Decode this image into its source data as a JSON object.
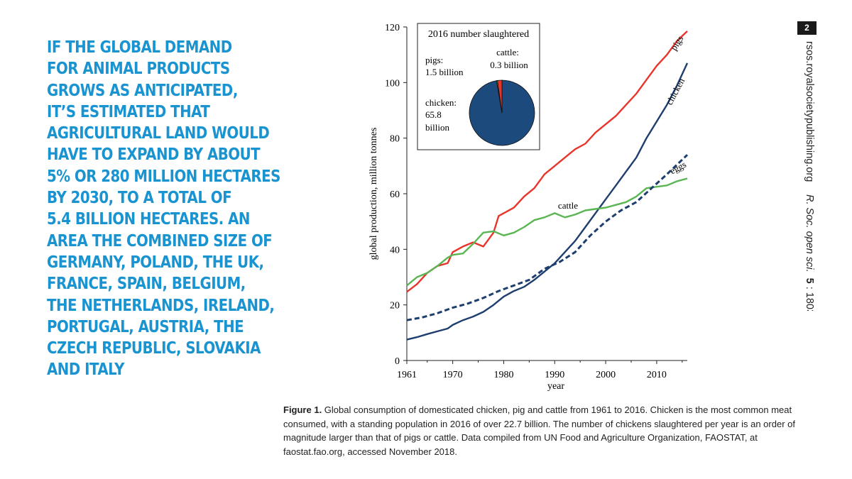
{
  "headline": {
    "lines": [
      "IF THE GLOBAL DEMAND",
      "FOR ANIMAL PRODUCTS",
      "GROWS AS ANTICIPATED,",
      "IT’S ESTIMATED THAT",
      "AGRICULTURAL LAND WOULD",
      "HAVE TO EXPAND BY ABOUT",
      "5% OR 280 MILLION HECTARES",
      "BY 2030, TO A TOTAL OF",
      "5.4 BILLION HECTARES. AN",
      "AREA THE COMBINED SIZE OF",
      "GERMANY, POLAND, THE UK,",
      "FRANCE, SPAIN, BELGIUM,",
      "THE NETHERLANDS, IRELAND,",
      "PORTUGAL, AUSTRIA, THE",
      "CZECH REPUBLIC, SLOVAKIA",
      "AND ITALY"
    ]
  },
  "page_number": "2",
  "side_text": {
    "journal_url": "rsos.royalsocietypublishing.org",
    "citation_italic": "R. Soc. open sci.",
    "citation_volume": "5",
    "citation_number": ": 180325"
  },
  "caption": {
    "label": "Figure 1.",
    "text": " Global consumption of domesticated chicken, pig and cattle from 1961 to 2016. Chicken is the most common meat consumed, with a standing population in 2016 of over 22.7 billion. The number of chickens slaughtered per year is an order of magnitude larger than that of pigs or cattle. Data compiled from UN Food and Agriculture Organization, FAOSTAT, at faostat.fao.org, accessed November 2018."
  },
  "colors": {
    "headline": "#1a93d1",
    "pigs": "#e8342b",
    "chicken": "#1d3e6e",
    "cattle": "#5ab553",
    "eggs": "#1d3e6e",
    "pie_chicken": "#1d4a7c",
    "pie_pigs": "#e8342b",
    "pie_cattle": "#5ab553"
  },
  "chart_data": [
    {
      "type": "line",
      "xlabel": "year",
      "ylabel": "global production, million tonnes",
      "xlim": [
        1961,
        2016
      ],
      "ylim": [
        0,
        120
      ],
      "xticks": [
        1961,
        1970,
        1980,
        1990,
        2000,
        2010
      ],
      "yticks": [
        0,
        20,
        40,
        60,
        80,
        100,
        120
      ],
      "grid": false,
      "series": [
        {
          "name": "pigs",
          "style": "solid",
          "color": "#e8342b",
          "x": [
            1961,
            1963,
            1965,
            1967,
            1969,
            1970,
            1972,
            1974,
            1976,
            1978,
            1979,
            1980,
            1982,
            1984,
            1986,
            1988,
            1990,
            1992,
            1994,
            1996,
            1998,
            2000,
            2002,
            2004,
            2006,
            2008,
            2010,
            2012,
            2014,
            2016
          ],
          "y": [
            24.7,
            27.5,
            31.5,
            34,
            35,
            39,
            41,
            42.5,
            41,
            46,
            52,
            53,
            55,
            59,
            62,
            67,
            70,
            73,
            76,
            78,
            82,
            85,
            88,
            92,
            96,
            101,
            106,
            110,
            115,
            118.5
          ]
        },
        {
          "name": "chicken",
          "style": "solid",
          "color": "#1d3e6e",
          "x": [
            1961,
            1963,
            1965,
            1967,
            1969,
            1970,
            1972,
            1974,
            1976,
            1978,
            1980,
            1982,
            1984,
            1986,
            1988,
            1990,
            1992,
            1994,
            1996,
            1998,
            2000,
            2002,
            2004,
            2006,
            2008,
            2010,
            2012,
            2014,
            2016
          ],
          "y": [
            7.5,
            8.4,
            9.5,
            10.5,
            11.5,
            12.8,
            14.5,
            15.8,
            17.5,
            20,
            23,
            25,
            26.5,
            29,
            32,
            35,
            39,
            43,
            48,
            53,
            58,
            63,
            68,
            73,
            80,
            86,
            92,
            99,
            107
          ]
        },
        {
          "name": "cattle",
          "style": "solid",
          "color": "#5ab553",
          "x": [
            1961,
            1963,
            1965,
            1967,
            1969,
            1970,
            1972,
            1974,
            1976,
            1978,
            1980,
            1982,
            1984,
            1986,
            1988,
            1990,
            1992,
            1994,
            1996,
            1998,
            2000,
            2002,
            2004,
            2006,
            2008,
            2010,
            2012,
            2014,
            2016
          ],
          "y": [
            27,
            30,
            31.5,
            34,
            37,
            38,
            38.5,
            42,
            46,
            46.5,
            45,
            46,
            48,
            50.5,
            51.5,
            53,
            51.5,
            52.5,
            54,
            54.5,
            55,
            56,
            57,
            59,
            62,
            62.5,
            63,
            64.5,
            65.5
          ]
        },
        {
          "name": "eggs",
          "style": "dashed",
          "color": "#1d3e6e",
          "x": [
            1961,
            1964,
            1967,
            1970,
            1973,
            1976,
            1979,
            1982,
            1985,
            1988,
            1991,
            1994,
            1997,
            2000,
            2003,
            2006,
            2009,
            2012,
            2016
          ],
          "y": [
            14.5,
            15.5,
            17,
            19,
            20.5,
            22.5,
            25,
            27,
            29,
            33,
            35.5,
            39,
            45,
            50,
            54,
            57,
            62,
            67,
            74
          ]
        }
      ],
      "annotations": [
        "pigs",
        "chicken",
        "cattle",
        "eggs"
      ]
    },
    {
      "type": "pie",
      "title": "2016 number slaughtered",
      "slices": [
        {
          "label": "chicken:",
          "value_text": "65.8 billion",
          "value": 65.8,
          "color": "#1d4a7c"
        },
        {
          "label": "pigs:",
          "value_text": "1.5 billion",
          "value": 1.5,
          "color": "#e8342b"
        },
        {
          "label": "cattle:",
          "value_text": "0.3 billion",
          "value": 0.3,
          "color": "#5ab553"
        }
      ]
    }
  ]
}
